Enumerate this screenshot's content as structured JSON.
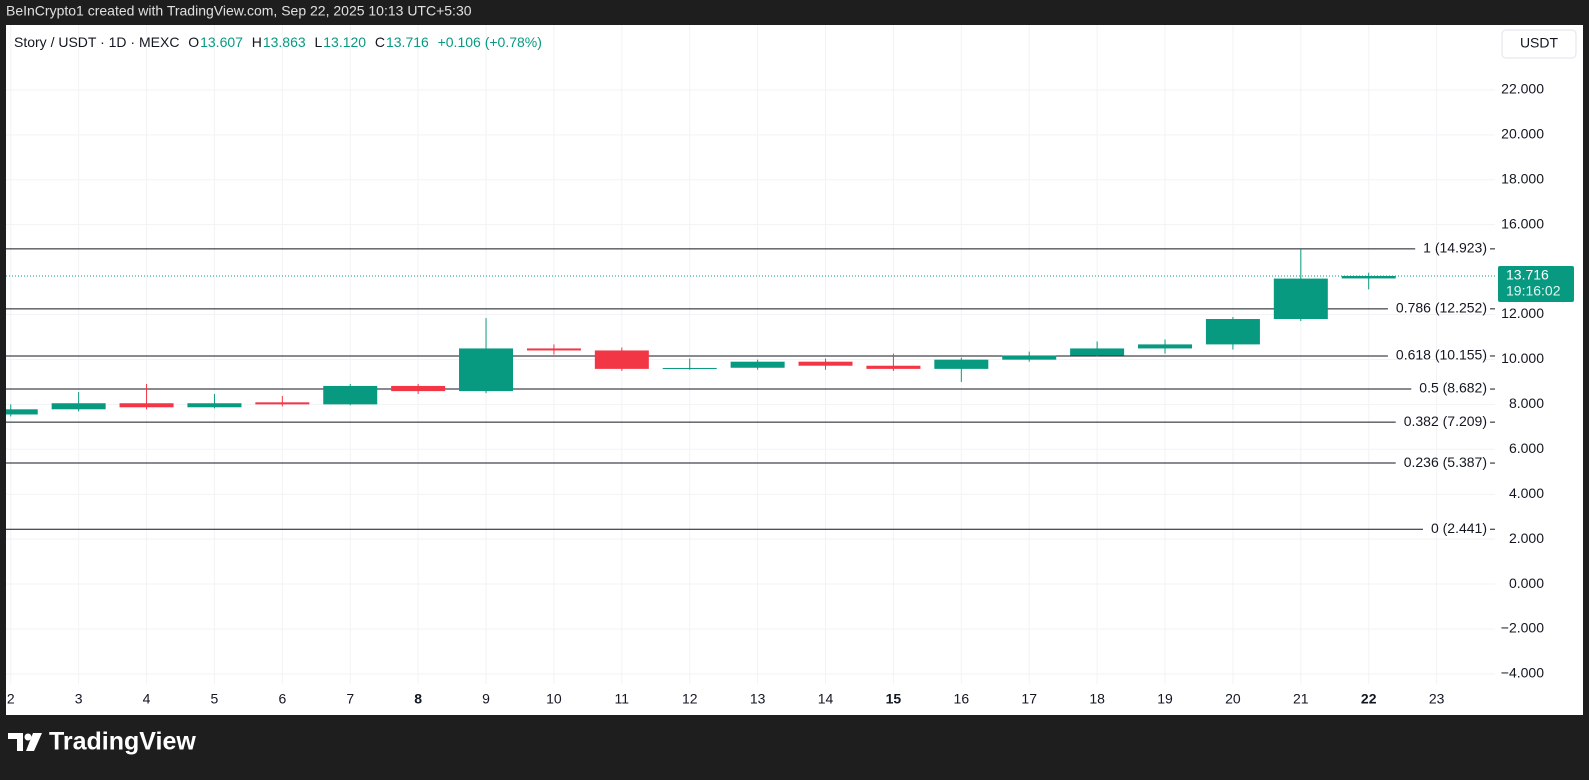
{
  "header": {
    "attribution": "BeInCrypto1 created with TradingView.com, Sep 22, 2025 10:13 UTC+5:30"
  },
  "legend": {
    "symbol": "Story / USDT · 1D · MEXC",
    "open_label": "O",
    "open": "13.607",
    "high_label": "H",
    "high": "13.863",
    "low_label": "L",
    "low": "13.120",
    "close_label": "C",
    "close": "13.716",
    "change": "+0.106 (+0.78%)"
  },
  "currency": "USDT",
  "footer": {
    "brand": "TradingView"
  },
  "chart_data": {
    "type": "candlestick",
    "up_color": "#089981",
    "down_color": "#f23645",
    "x": [
      2,
      3,
      4,
      5,
      6,
      7,
      8,
      9,
      10,
      11,
      12,
      13,
      14,
      15,
      16,
      17,
      18,
      19,
      20,
      21,
      22
    ],
    "open": [
      7.55,
      7.78,
      8.05,
      7.87,
      8.09,
      8.0,
      8.82,
      8.59,
      10.49,
      10.4,
      9.58,
      9.63,
      9.9,
      9.72,
      9.58,
      9.99,
      10.17,
      10.49,
      10.67,
      11.8,
      13.607
    ],
    "high": [
      8.0,
      8.55,
      8.91,
      8.46,
      8.37,
      8.91,
      8.91,
      11.84,
      10.67,
      10.53,
      10.04,
      9.99,
      10.04,
      10.26,
      10.08,
      10.35,
      10.8,
      10.89,
      11.89,
      14.92,
      13.863
    ],
    "low": [
      7.46,
      7.69,
      7.78,
      7.82,
      7.91,
      7.96,
      8.46,
      8.5,
      10.22,
      9.49,
      9.54,
      9.54,
      9.54,
      9.49,
      9.0,
      9.9,
      10.13,
      10.26,
      10.44,
      11.71,
      13.12
    ],
    "close": [
      7.78,
      8.05,
      7.87,
      8.05,
      8.0,
      8.82,
      8.59,
      10.49,
      10.4,
      9.58,
      9.62,
      9.9,
      9.72,
      9.58,
      9.99,
      10.17,
      10.49,
      10.67,
      11.8,
      13.6,
      13.716
    ],
    "xlim": [
      1.93,
      23.86
    ],
    "xticks": [
      2,
      3,
      4,
      5,
      6,
      7,
      8,
      9,
      10,
      11,
      12,
      13,
      14,
      15,
      16,
      17,
      18,
      19,
      20,
      21,
      22,
      23
    ],
    "ylim": [
      -4.45,
      24.89
    ],
    "yticks": [
      {
        "value": 22,
        "label": "22.000"
      },
      {
        "value": 20,
        "label": "20.000"
      },
      {
        "value": 18,
        "label": "18.000"
      },
      {
        "value": 16,
        "label": "16.000"
      },
      {
        "value": 12,
        "label": "12.000"
      },
      {
        "value": 10,
        "label": "10.000"
      },
      {
        "value": 8,
        "label": "8.000"
      },
      {
        "value": 6,
        "label": "6.000"
      },
      {
        "value": 4,
        "label": "4.000"
      },
      {
        "value": 2,
        "label": "2.000"
      },
      {
        "value": 0,
        "label": "0.000"
      },
      {
        "value": -2,
        "label": "−2.000"
      },
      {
        "value": -4,
        "label": "−4.000"
      }
    ],
    "grid": true,
    "fib_levels": [
      {
        "value": 14.923,
        "label": "1 (14.923)"
      },
      {
        "value": 12.252,
        "label": "0.786 (12.252)"
      },
      {
        "value": 10.155,
        "label": "0.618 (10.155)"
      },
      {
        "value": 8.682,
        "label": "0.5 (8.682)"
      },
      {
        "value": 7.209,
        "label": "0.382 (7.209)"
      },
      {
        "value": 5.387,
        "label": "0.236 (5.387)"
      },
      {
        "value": 2.441,
        "label": "0 (2.441)"
      }
    ],
    "last_price": 13.716,
    "countdown": "19:16:02"
  }
}
